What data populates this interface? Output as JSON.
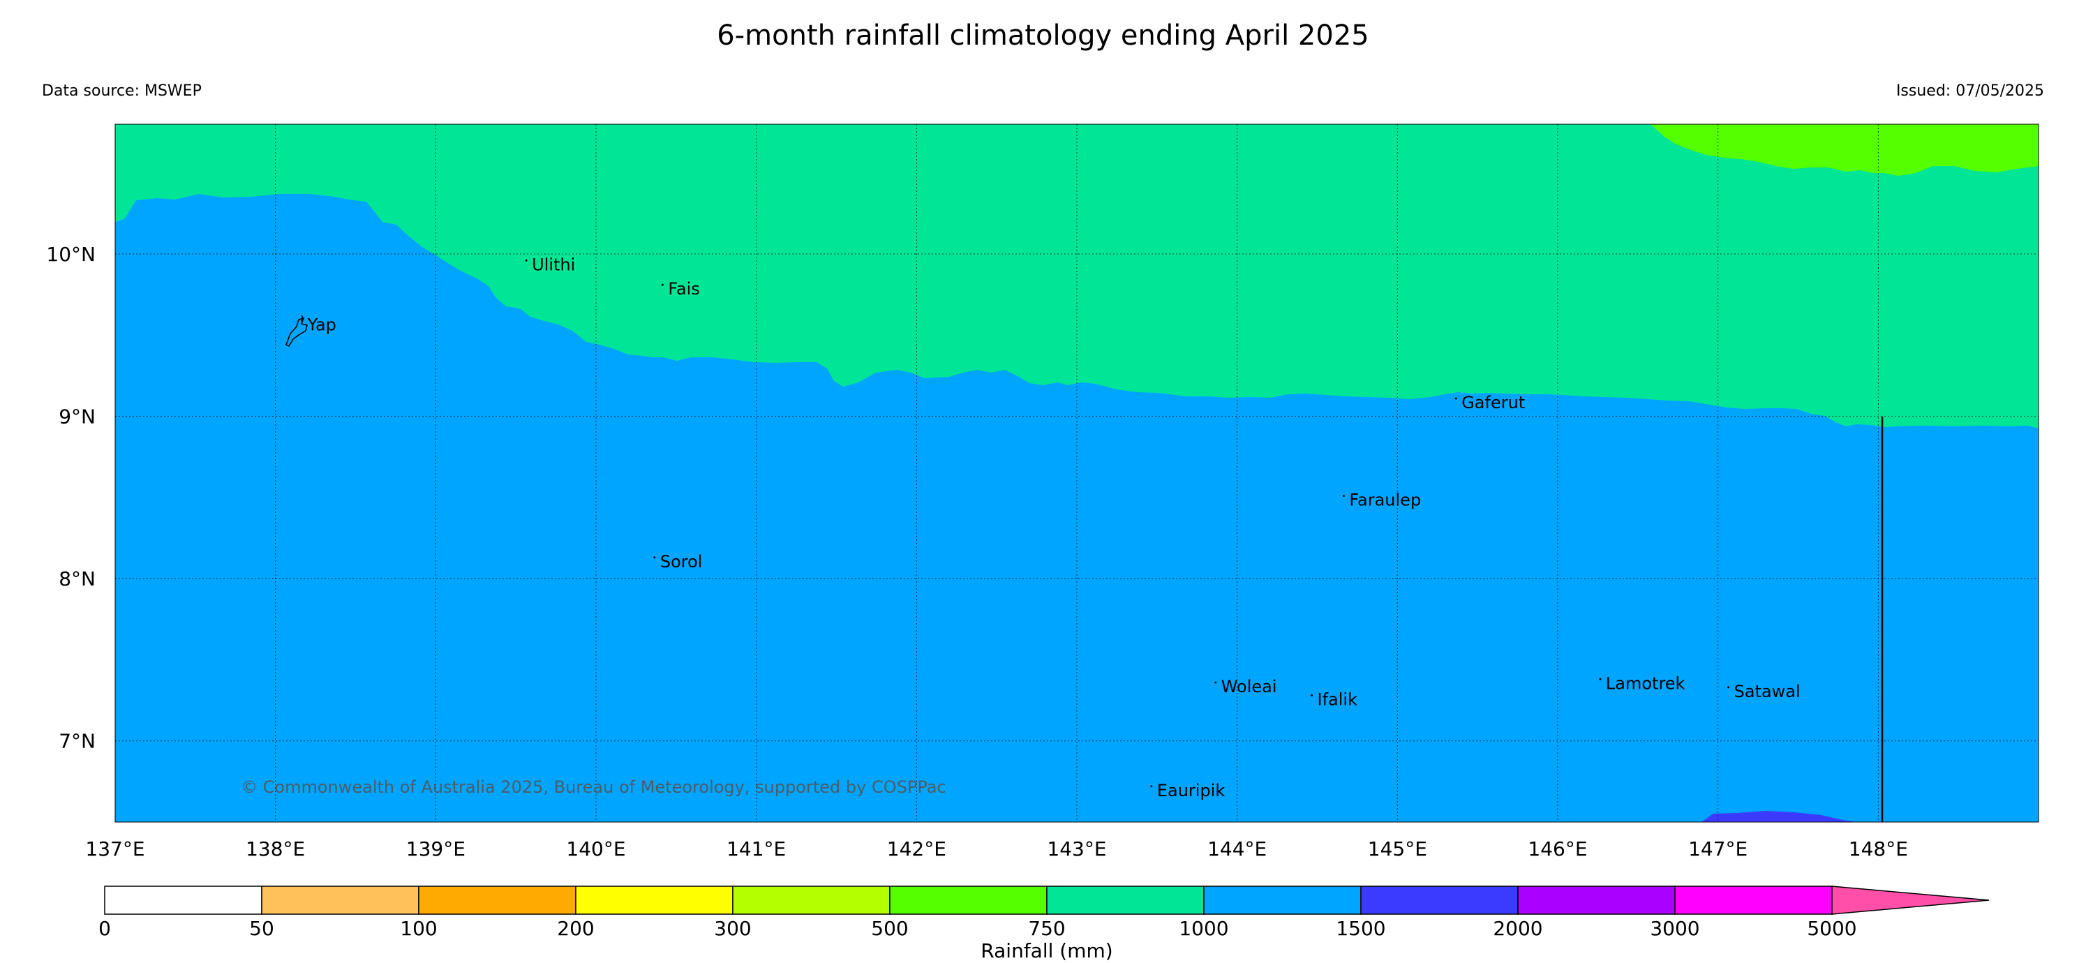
{
  "title": "6-month rainfall climatology ending April 2025",
  "data_source": "Data source: MSWEP",
  "issued": "Issued: 07/05/2025",
  "copyright": "© Commonwealth of Australia 2025, Bureau of Meteorology, supported by COSPPac",
  "map": {
    "region": "Yap and Outer Islands",
    "lat_range": [
      6.5,
      10.8
    ],
    "lon_range": [
      137.0,
      149.0
    ],
    "lat_ticks": [
      {
        "value": 10,
        "label": "10°N"
      },
      {
        "value": 9,
        "label": "9°N"
      },
      {
        "value": 8,
        "label": "8°N"
      },
      {
        "value": 7,
        "label": "7°N"
      }
    ],
    "lon_ticks": [
      {
        "value": 137,
        "label": "137°E"
      },
      {
        "value": 138,
        "label": "138°E"
      },
      {
        "value": 139,
        "label": "139°E"
      },
      {
        "value": 140,
        "label": "140°E"
      },
      {
        "value": 141,
        "label": "141°E"
      },
      {
        "value": 142,
        "label": "142°E"
      },
      {
        "value": 143,
        "label": "143°E"
      },
      {
        "value": 144,
        "label": "144°E"
      },
      {
        "value": 145,
        "label": "145°E"
      },
      {
        "value": 146,
        "label": "146°E"
      },
      {
        "value": 147,
        "label": "147°E"
      },
      {
        "value": 148,
        "label": "148°E"
      }
    ],
    "gridlines": "dotted",
    "places": [
      {
        "name": "Ulithi",
        "lon": 139.6,
        "lat": 9.9
      },
      {
        "name": "Fais",
        "lon": 140.45,
        "lat": 9.75
      },
      {
        "name": "Yap",
        "lon": 138.2,
        "lat": 9.53
      },
      {
        "name": "Gaferut",
        "lon": 145.4,
        "lat": 9.05
      },
      {
        "name": "Faraulep",
        "lon": 144.7,
        "lat": 8.45
      },
      {
        "name": "Sorol",
        "lon": 140.4,
        "lat": 8.07
      },
      {
        "name": "Woleai",
        "lon": 143.9,
        "lat": 7.3
      },
      {
        "name": "Ifalik",
        "lon": 144.5,
        "lat": 7.22
      },
      {
        "name": "Lamotrek",
        "lon": 146.3,
        "lat": 7.32
      },
      {
        "name": "Satawal",
        "lon": 147.1,
        "lat": 7.27
      },
      {
        "name": "Eauripik",
        "lon": 143.5,
        "lat": 6.66
      }
    ],
    "zones": [
      {
        "range": "1000-1500",
        "color": "#00a5ff",
        "area": "south and centre"
      },
      {
        "range": "750-1000",
        "color": "#00e696",
        "area": "north"
      },
      {
        "range": "500-750",
        "color": "#55ff00",
        "area": "far north-east corner"
      },
      {
        "range": "1500-2000",
        "color": "#3b3bff",
        "area": "small patch near 147°E on southern edge"
      }
    ]
  },
  "colorbar": {
    "label": "Rainfall (mm)",
    "bins": [
      {
        "from": 0,
        "to": 50,
        "color": "#ffffff"
      },
      {
        "from": 50,
        "to": 100,
        "color": "#ffc15a"
      },
      {
        "from": 100,
        "to": 200,
        "color": "#ffaa00"
      },
      {
        "from": 200,
        "to": 300,
        "color": "#ffff00"
      },
      {
        "from": 300,
        "to": 500,
        "color": "#b4ff00"
      },
      {
        "from": 500,
        "to": 750,
        "color": "#55ff00"
      },
      {
        "from": 750,
        "to": 1000,
        "color": "#00e696"
      },
      {
        "from": 1000,
        "to": 1500,
        "color": "#00a5ff"
      },
      {
        "from": 1500,
        "to": 2000,
        "color": "#3b3bff"
      },
      {
        "from": 2000,
        "to": 3000,
        "color": "#aa00ff"
      },
      {
        "from": 3000,
        "to": 5000,
        "color": "#ff00ff"
      },
      {
        "from": 5000,
        "to": null,
        "color": "#ff4fa8"
      }
    ],
    "tick_labels": [
      "0",
      "50",
      "100",
      "200",
      "300",
      "500",
      "750",
      "1000",
      "1500",
      "2000",
      "3000",
      "5000"
    ]
  }
}
